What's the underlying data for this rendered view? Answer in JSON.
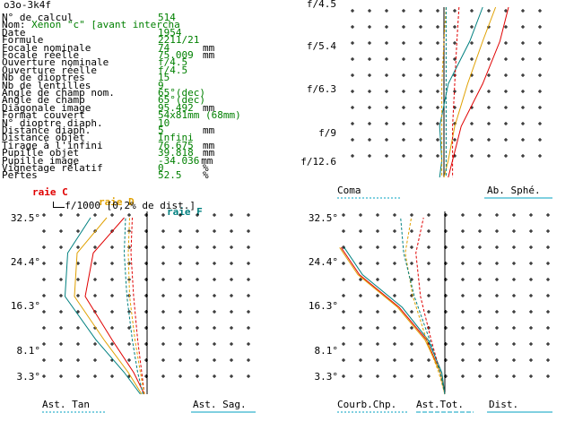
{
  "window_title": "o3o-3k4f",
  "specs": [
    {
      "label": "N° de calcul",
      "value": "514",
      "unit": ""
    },
    {
      "label": "Nom: Xenon \"c\" [avant intercha",
      "value": "",
      "unit": ""
    },
    {
      "label": "Date",
      "value": "1954",
      "unit": ""
    },
    {
      "label": "Formule",
      "value": "2211/21",
      "unit": ""
    },
    {
      "label": "Focale nominale",
      "value": "74",
      "unit": "mm"
    },
    {
      "label": "Focale réelle",
      "value": "75.009",
      "unit": "mm"
    },
    {
      "label": "Ouverture nominale",
      "value": "f/4.5",
      "unit": ""
    },
    {
      "label": "Ouverture réelle",
      "value": "f/4.5",
      "unit": ""
    },
    {
      "label": "Nb de dioptres",
      "value": "15",
      "unit": ""
    },
    {
      "label": "Nb de lentilles",
      "value": "9",
      "unit": ""
    },
    {
      "label": "Angle de champ nom.",
      "value": "65°(dec)",
      "unit": ""
    },
    {
      "label": "Angle de champ",
      "value": "65°(dec)",
      "unit": ""
    },
    {
      "label": "Diagonale image",
      "value": "95.492",
      "unit": "mm"
    },
    {
      "label": "Format couvert",
      "value": "54x81mm (68mm)",
      "unit": ""
    },
    {
      "label": "N° dioptre diaph.",
      "value": "10",
      "unit": ""
    },
    {
      "label": "Distance diaph.",
      "value": "5",
      "unit": "mm"
    },
    {
      "label": "Distance objet",
      "value": "Infini",
      "unit": ""
    },
    {
      "label": "Tirage à l'infini",
      "value": "76.675",
      "unit": "mm"
    },
    {
      "label": "Pupille objet",
      "value": "39.818",
      "unit": "mm"
    },
    {
      "label": "Pupille image",
      "value": "-34.036",
      "unit": "mm"
    },
    {
      "label": "Vignetage relatif",
      "value": "0",
      "unit": "%"
    },
    {
      "label": "Pertes",
      "value": "52.5",
      "unit": "%"
    }
  ],
  "legend": {
    "c": {
      "label": "raie C",
      "color": "#e00000"
    },
    "d": {
      "label": "raie D",
      "color": "#e0a000"
    },
    "f": {
      "label": "raie F",
      "color": "#008080"
    }
  },
  "scale_note": "f/1000 [0,2% de dist.]",
  "colors": {
    "c": "#e00000",
    "d": "#e0a000",
    "f": "#008080",
    "text_value": "#008000",
    "axis": "#000000"
  },
  "chart_data": [
    {
      "type": "line",
      "panel": "coma-spherical",
      "y_tick_labels": [
        "f/4.5",
        "f/5.4",
        "f/6.3",
        "f/9",
        "f/12.6"
      ],
      "footer_labels": [
        "Coma",
        "Ab. Sphé."
      ],
      "series": [
        {
          "line": "C",
          "style": "solid",
          "x": [
            1.5,
            1.3,
            0.9,
            0.4,
            0.2,
            0.1
          ],
          "y": [
            0,
            0.2,
            0.45,
            0.7,
            0.9,
            1
          ]
        },
        {
          "line": "D",
          "style": "solid",
          "x": [
            1.2,
            0.9,
            0.55,
            0.25,
            0.1,
            0
          ],
          "y": [
            0,
            0.2,
            0.45,
            0.7,
            0.9,
            1
          ]
        },
        {
          "line": "F",
          "style": "solid",
          "x": [
            0.9,
            0.6,
            0.1,
            -0.1,
            -0.05,
            -0.1
          ],
          "y": [
            0,
            0.2,
            0.45,
            0.7,
            0.9,
            1
          ]
        },
        {
          "line": "C",
          "style": "dashed",
          "x": [
            0.35,
            0.3,
            0.25,
            0.2,
            0.2,
            0.2
          ],
          "y": [
            0,
            0.2,
            0.45,
            0.7,
            0.9,
            1
          ]
        },
        {
          "line": "D",
          "style": "dashed",
          "x": [
            0.05,
            0.0,
            -0.05,
            -0.05,
            -0.05,
            -0.05
          ],
          "y": [
            0,
            0.2,
            0.45,
            0.7,
            0.9,
            1
          ]
        },
        {
          "line": "F",
          "style": "dashed",
          "x": [
            0.05,
            0.05,
            0.05,
            0.05,
            0.05,
            0.05
          ],
          "y": [
            0,
            0.2,
            0.45,
            0.7,
            0.9,
            1
          ]
        }
      ]
    },
    {
      "type": "line",
      "panel": "astigmatism-tan-sag",
      "y_tick_labels": [
        "32.5°",
        "24.4°",
        "16.3°",
        "8.1°",
        "3.3°"
      ],
      "y_values": [
        32.5,
        24.4,
        16.3,
        8.1,
        3.3
      ],
      "footer_labels": [
        "Ast. Tan",
        "Ast. Sag."
      ],
      "series": [
        {
          "line": "C",
          "style": "solid",
          "x": [
            -0.2,
            -1.0,
            -2.6,
            -4.6,
            -4.0,
            -1.7
          ],
          "y": [
            0,
            4,
            10,
            18,
            26,
            32.5
          ]
        },
        {
          "line": "D",
          "style": "solid",
          "x": [
            -0.4,
            -1.4,
            -3.2,
            -5.4,
            -5.2,
            -3.0
          ],
          "y": [
            0,
            4,
            10,
            18,
            26,
            32.5
          ]
        },
        {
          "line": "F",
          "style": "solid",
          "x": [
            -0.5,
            -1.7,
            -3.8,
            -6.1,
            -5.9,
            -4.2
          ],
          "y": [
            0,
            4,
            10,
            18,
            26,
            32.5
          ]
        },
        {
          "line": "C",
          "style": "dashed",
          "x": [
            -0.2,
            -0.4,
            -0.7,
            -1.0,
            -1.2,
            -1.1
          ],
          "y": [
            0,
            4,
            10,
            18,
            26,
            32.5
          ]
        },
        {
          "line": "D",
          "style": "dashed",
          "x": [
            -0.2,
            -0.5,
            -0.9,
            -1.3,
            -1.4,
            -1.3
          ],
          "y": [
            0,
            4,
            10,
            18,
            26,
            32.5
          ]
        },
        {
          "line": "F",
          "style": "dashed",
          "x": [
            -0.3,
            -0.7,
            -1.1,
            -1.5,
            -1.7,
            -1.6
          ],
          "y": [
            0,
            4,
            10,
            18,
            26,
            32.5
          ]
        }
      ]
    },
    {
      "type": "line",
      "panel": "field-curvature-distortion",
      "y_tick_labels": [
        "32.5°",
        "24.4°",
        "16.3°",
        "8.1°",
        "3.3°"
      ],
      "y_values": [
        32.5,
        24.4,
        16.3,
        8.1,
        3.3
      ],
      "footer_labels": [
        "Courb.Chp.",
        "Ast.Tot.",
        "Dist."
      ],
      "series": [
        {
          "line": "C",
          "style": "solid",
          "x": [
            0,
            -0.3,
            -1.2,
            -3.0,
            -5.6,
            -6.8
          ],
          "y": [
            0,
            4,
            10,
            16,
            22,
            27
          ]
        },
        {
          "line": "D",
          "style": "solid",
          "x": [
            0,
            -0.3,
            -1.3,
            -3.1,
            -5.7,
            -6.9
          ],
          "y": [
            0,
            4,
            10,
            16,
            22,
            27
          ]
        },
        {
          "line": "F",
          "style": "solid",
          "x": [
            0,
            -0.2,
            -1.1,
            -2.8,
            -5.4,
            -6.6
          ],
          "y": [
            0,
            4,
            10,
            16,
            22,
            27
          ]
        },
        {
          "line": "C",
          "style": "dashed",
          "x": [
            0,
            -0.3,
            -0.9,
            -1.6,
            -1.9,
            -1.4
          ],
          "y": [
            0,
            4,
            10,
            18,
            26,
            32.5
          ]
        },
        {
          "line": "D",
          "style": "dashed",
          "x": [
            0,
            -0.4,
            -1.2,
            -2.1,
            -2.6,
            -2.2
          ],
          "y": [
            0,
            4,
            10,
            18,
            26,
            32.5
          ]
        },
        {
          "line": "F",
          "style": "dashed",
          "x": [
            0,
            -0.3,
            -1.0,
            -2.0,
            -2.7,
            -2.9
          ],
          "y": [
            0,
            4,
            10,
            18,
            26,
            32.5
          ]
        }
      ]
    }
  ]
}
